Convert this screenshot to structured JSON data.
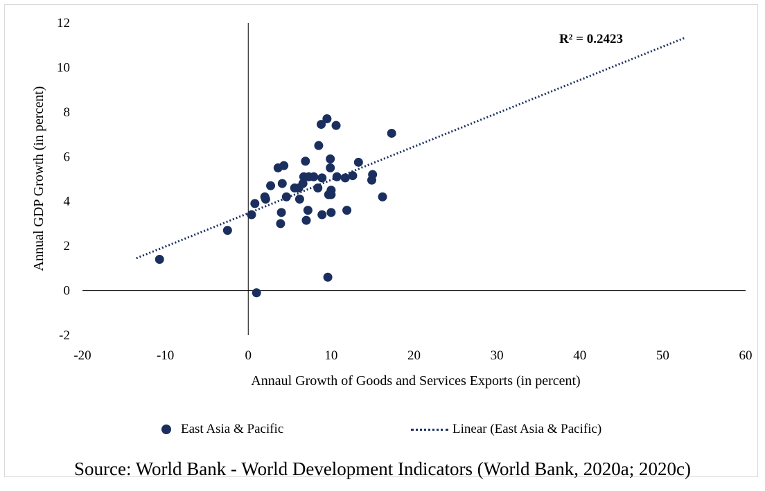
{
  "chart_data": {
    "type": "scatter",
    "xlabel": "Annaul Growth of Goods and Services Exports (in percent)",
    "ylabel": "Annual GDP Growth (in percent)",
    "xlim": [
      -20,
      60
    ],
    "ylim": [
      -2,
      12
    ],
    "x_ticks": [
      "-20",
      "-10",
      "0",
      "10",
      "20",
      "30",
      "40",
      "50",
      "60"
    ],
    "y_ticks": [
      "-2",
      "0",
      "2",
      "4",
      "6",
      "8",
      "10",
      "12"
    ],
    "grid": false,
    "legend_position": "bottom",
    "annotation": "R² = 0.2423",
    "series": [
      {
        "name": "East Asia & Pacific",
        "color": "#1b2f5e",
        "points": [
          [
            -10.7,
            1.4
          ],
          [
            -2.5,
            2.7
          ],
          [
            0.4,
            3.4
          ],
          [
            0.8,
            3.9
          ],
          [
            1.0,
            -0.1
          ],
          [
            2.0,
            4.2
          ],
          [
            2.1,
            4.1
          ],
          [
            2.7,
            4.7
          ],
          [
            3.6,
            5.5
          ],
          [
            3.9,
            3.0
          ],
          [
            4.0,
            3.5
          ],
          [
            4.1,
            4.8
          ],
          [
            4.3,
            5.6
          ],
          [
            4.6,
            4.2
          ],
          [
            5.6,
            4.6
          ],
          [
            6.1,
            4.6
          ],
          [
            6.2,
            4.1
          ],
          [
            6.6,
            4.8
          ],
          [
            6.7,
            5.1
          ],
          [
            6.9,
            5.8
          ],
          [
            7.0,
            3.15
          ],
          [
            7.2,
            3.6
          ],
          [
            7.3,
            5.1
          ],
          [
            7.9,
            5.1
          ],
          [
            8.4,
            4.6
          ],
          [
            8.5,
            6.5
          ],
          [
            8.8,
            7.45
          ],
          [
            8.9,
            3.4
          ],
          [
            8.9,
            5.05
          ],
          [
            9.5,
            7.7
          ],
          [
            9.6,
            0.6
          ],
          [
            9.7,
            4.3
          ],
          [
            9.9,
            5.5
          ],
          [
            9.9,
            5.9
          ],
          [
            10.0,
            3.5
          ],
          [
            10.0,
            4.3
          ],
          [
            10.0,
            4.5
          ],
          [
            10.6,
            7.4
          ],
          [
            10.7,
            5.1
          ],
          [
            11.7,
            5.05
          ],
          [
            11.9,
            3.6
          ],
          [
            12.6,
            5.15
          ],
          [
            13.3,
            5.75
          ],
          [
            14.9,
            4.95
          ],
          [
            15.0,
            5.2
          ],
          [
            16.2,
            4.2
          ],
          [
            17.3,
            7.05
          ]
        ]
      },
      {
        "name": "Linear (East Asia & Pacific)",
        "type": "trendline",
        "color": "#1b2f5e",
        "x": [
          -13.5,
          52.8
        ],
        "y": [
          1.45,
          11.35
        ]
      }
    ]
  },
  "legend": {
    "scatter_label": "East Asia & Pacific",
    "trend_label": "Linear (East Asia & Pacific)"
  },
  "source_note": "Source: World Bank - World Development Indicators (World Bank, 2020a; 2020c)"
}
